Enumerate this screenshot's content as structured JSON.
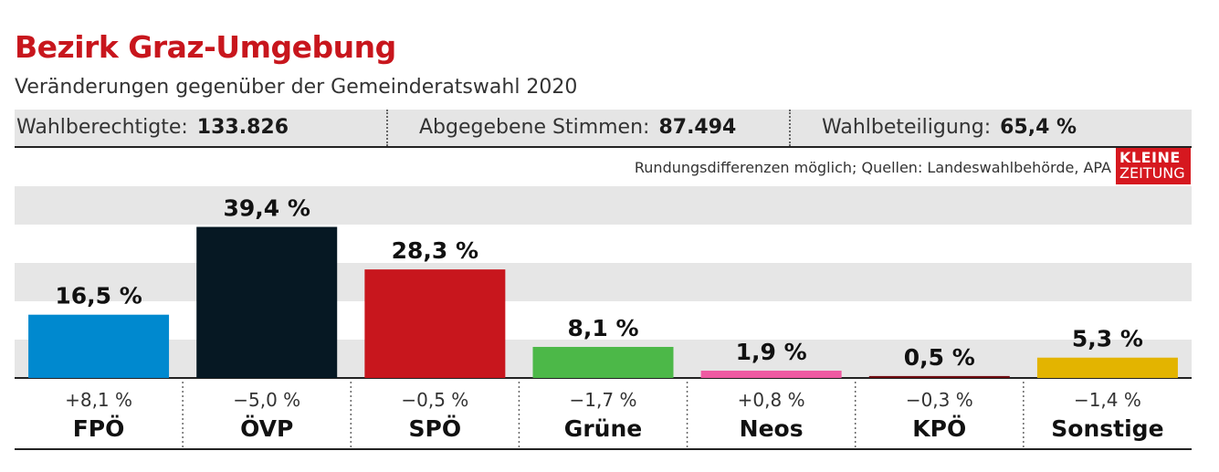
{
  "header": {
    "title": "Bezirk Graz-Umgebung",
    "subtitle": "Veränderungen gegenüber der Gemeinderatswahl 2020"
  },
  "stats": [
    {
      "label": "Wahlberechtigte:",
      "value": "133.826"
    },
    {
      "label": "Abgegebene Stimmen:",
      "value": "87.494"
    },
    {
      "label": "Wahlbeteiligung:",
      "value": "65,4 %"
    }
  ],
  "source": "Rundungsdifferenzen möglich; Quellen: Landeswahlbehörde, APA",
  "logo": {
    "line1": "KLEINE",
    "line2": "ZEITUNG"
  },
  "chart_data": {
    "type": "bar",
    "categories": [
      "FPÖ",
      "ÖVP",
      "SPÖ",
      "Grüne",
      "Neos",
      "KPÖ",
      "Sonstige"
    ],
    "values": [
      16.5,
      39.4,
      28.3,
      8.1,
      1.9,
      0.5,
      5.3
    ],
    "value_labels": [
      "16,5 %",
      "39,4 %",
      "28,3 %",
      "8,1 %",
      "1,9 %",
      "0,5 %",
      "5,3 %"
    ],
    "changes": [
      "+8,1 %",
      "−5,0 %",
      "−0,5 %",
      "−1,7 %",
      "+0,8 %",
      "−0,3 %",
      "−1,4 %"
    ],
    "colors": [
      "#0089cf",
      "#061823",
      "#c8161d",
      "#4cb848",
      "#ef5aa2",
      "#6e0a10",
      "#e3b400"
    ],
    "ylim": [
      0,
      40
    ],
    "grid": true
  }
}
